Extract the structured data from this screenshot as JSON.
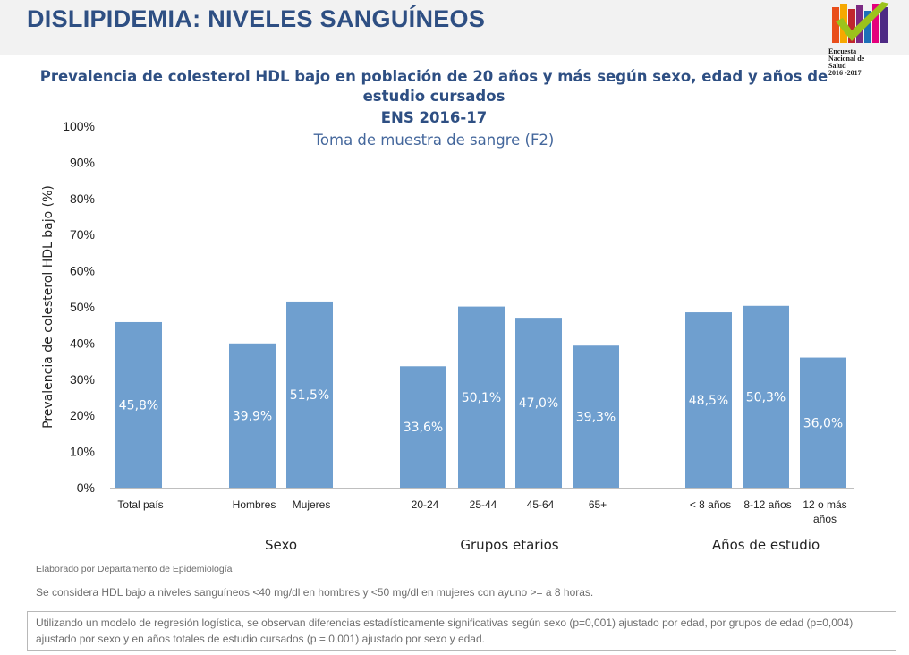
{
  "header": {
    "title": "DISLIPIDEMIA: NIVELES SANGUÍNEOS"
  },
  "logo": {
    "text_lines": [
      "Encuesta",
      "Nacional de",
      "Salud",
      "2016 -2017"
    ]
  },
  "chart_data": {
    "type": "bar",
    "title": "Prevalencia de colesterol HDL bajo en población de 20 años y más según sexo, edad y años de estudio cursados",
    "subtitle_bold": "ENS 2016-17",
    "subtitle": "Toma de muestra de sangre (F2)",
    "ylabel": "Prevalencia de colesterol HDL bajo (%)",
    "xlabel": "",
    "ylim": [
      0,
      100
    ],
    "yticks": [
      "0%",
      "10%",
      "20%",
      "30%",
      "40%",
      "50%",
      "60%",
      "70%",
      "80%",
      "90%",
      "100%"
    ],
    "grid": false,
    "bar_color": "#6f9fcf",
    "categories": [
      "Total país",
      "Hombres",
      "Mujeres",
      "20-24",
      "25-44",
      "45-64",
      "65+",
      "< 8 años",
      "8-12 años",
      "12 o más años"
    ],
    "values": [
      45.8,
      39.9,
      51.5,
      33.6,
      50.1,
      47.0,
      39.3,
      48.5,
      50.3,
      36.0
    ],
    "data_labels": [
      "45,8%",
      "39,9%",
      "51,5%",
      "33,6%",
      "50,1%",
      "47,0%",
      "39,3%",
      "48,5%",
      "50,3%",
      "36,0%"
    ],
    "groups": [
      {
        "label": "",
        "indices": [
          0
        ]
      },
      {
        "label": "Sexo",
        "indices": [
          1,
          2
        ]
      },
      {
        "label": "Grupos etarios",
        "indices": [
          3,
          4,
          5,
          6
        ]
      },
      {
        "label": "Años de estudio",
        "indices": [
          7,
          8,
          9
        ]
      }
    ]
  },
  "footer": {
    "source": "Elaborado por Departamento de Epidemiología",
    "definition": "Se considera HDL bajo  a niveles sanguíneos <40 mg/dl en hombres y <50 mg/dl en mujeres con ayuno >= a 8 horas.",
    "note": "Utilizando un modelo de regresión logística, se observan diferencias estadísticamente significativas según sexo (p=0,001) ajustado por edad, por grupos de edad (p=0,004) ajustado por sexo y en años totales de estudio cursados (p = 0,001) ajustado por sexo y edad."
  }
}
